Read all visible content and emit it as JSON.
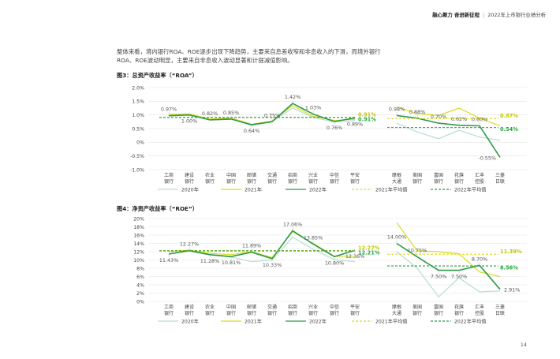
{
  "header": {
    "brand": "融心聚力 奋进新征程",
    "separator": "|",
    "report": "2022年上市银行业绩分析"
  },
  "intro": {
    "line1": "整体来看，境内银行ROA、ROE逐步出现下降趋势，主要来自息差收窄和非息收入的下滑，而境外银行",
    "line2": "ROA、ROE波动明显，主要来自非息收入波动显著和计提减值影响。"
  },
  "figures": [
    {
      "title": "图3：总资产收益率（“ROA”）"
    },
    {
      "title": "图4：净资产收益率（“ROE”）"
    }
  ],
  "page_number": "14",
  "colors": {
    "2020": "#b8dcd3",
    "2021": "#d7dc1e",
    "2022": "#2f9a4a",
    "avg2021": "#d7dc1e",
    "avg2022": "#2f9a4a",
    "grid": "#e3e3e3",
    "highlight": "#29a83d"
  },
  "chart_data": [
    {
      "type": "line",
      "title": "图3：总资产收益率（“ROA”）",
      "categories": [
        "工商银行",
        "建设银行",
        "农业银行",
        "中国银行",
        "邮储银行",
        "交通银行",
        "招商银行",
        "兴业银行",
        "中信银行",
        "平安银行",
        "摩根大通",
        "美国银行",
        "富国银行",
        "花旗银行",
        "汇丰银行",
        "三菱日联"
      ],
      "category_lines": [
        [
          "工商",
          "银行"
        ],
        [
          "建设",
          "银行"
        ],
        [
          "农业",
          "银行"
        ],
        [
          "中国",
          "银行"
        ],
        [
          "邮储",
          "银行"
        ],
        [
          "交通",
          "银行"
        ],
        [
          "招商",
          "银行"
        ],
        [
          "兴业",
          "银行"
        ],
        [
          "中信",
          "银行"
        ],
        [
          "平安",
          "银行"
        ],
        [
          "摩根",
          "大通"
        ],
        [
          "美国",
          "银行"
        ],
        [
          "富国",
          "银行"
        ],
        [
          "花旗",
          "银行"
        ],
        [
          "汇丰",
          "控股"
        ],
        [
          "三菱",
          "日联"
        ]
      ],
      "groups": [
        {
          "start": 0,
          "end": 9
        },
        {
          "start": 10,
          "end": 15
        }
      ],
      "yticks": [
        "2.0%",
        "1.5%",
        "1.0%",
        "0.5%",
        "0%",
        "-0.5%",
        "-1.0%"
      ],
      "ylim": [
        -1.0,
        2.0
      ],
      "series": [
        {
          "name": "2020年",
          "key": "2020",
          "values": [
            1.0,
            1.02,
            0.84,
            0.86,
            0.61,
            0.76,
            1.25,
            0.91,
            0.74,
            0.79,
            0.7,
            0.38,
            0.13,
            0.44,
            0.19,
            0.07
          ]
        },
        {
          "name": "2021年",
          "key": "2021",
          "values": [
            1.02,
            1.04,
            0.85,
            0.89,
            0.66,
            0.78,
            1.34,
            0.95,
            0.8,
            0.84,
            1.3,
            1.05,
            0.98,
            1.25,
            0.88,
            0.6
          ]
        },
        {
          "name": "2022年",
          "key": "2022",
          "values": [
            0.97,
            1.0,
            0.82,
            0.85,
            0.64,
            0.75,
            1.42,
            1.03,
            0.76,
            0.89,
            0.98,
            0.88,
            0.7,
            0.62,
            0.6,
            -0.55
          ]
        }
      ],
      "averages": [
        {
          "name": "2021年平均值",
          "key": "avg2021",
          "group": 0,
          "value": 0.91,
          "label": "0.91%"
        },
        {
          "name": "2022年平均值",
          "key": "avg2022",
          "group": 0,
          "value": 0.91,
          "label": "0.91%"
        },
        {
          "name": "2021年平均值",
          "key": "avg2021",
          "group": 1,
          "value": 0.87,
          "label": "0.87%"
        },
        {
          "name": "2022年平均值",
          "key": "avg2022",
          "group": 1,
          "value": 0.54,
          "label": "0.54%"
        }
      ],
      "data_labels": [
        {
          "i": 0,
          "v": 0.97,
          "text": "0.97%",
          "pos": "above"
        },
        {
          "i": 1,
          "v": 1.0,
          "text": "1.00%",
          "pos": "below"
        },
        {
          "i": 2,
          "v": 0.82,
          "text": "0.82%",
          "pos": "above"
        },
        {
          "i": 3,
          "v": 0.85,
          "text": "0.85%",
          "pos": "above"
        },
        {
          "i": 4,
          "v": 0.64,
          "text": "0.64%",
          "pos": "below"
        },
        {
          "i": 5,
          "v": 0.75,
          "text": "0.75%",
          "pos": "above"
        },
        {
          "i": 6,
          "v": 1.42,
          "text": "1.42%",
          "pos": "above"
        },
        {
          "i": 7,
          "v": 1.03,
          "text": "1.03%",
          "pos": "above"
        },
        {
          "i": 8,
          "v": 0.76,
          "text": "0.76%",
          "pos": "below"
        },
        {
          "i": 9,
          "v": 0.89,
          "text": "0.89%",
          "pos": "below"
        },
        {
          "i": 10,
          "v": 0.98,
          "text": "0.98%",
          "pos": "above"
        },
        {
          "i": 11,
          "v": 0.88,
          "text": "0.88%",
          "pos": "above"
        },
        {
          "i": 12,
          "v": 0.7,
          "text": "0.70%",
          "pos": "above"
        },
        {
          "i": 13,
          "v": 0.62,
          "text": "0.62%",
          "pos": "above"
        },
        {
          "i": 14,
          "v": 0.6,
          "text": "0.60%",
          "pos": "above"
        },
        {
          "i": 15,
          "v": -0.55,
          "text": "-0.55%",
          "pos": "left"
        }
      ],
      "legend": [
        {
          "label": "2020年",
          "key": "2020",
          "style": "solid"
        },
        {
          "label": "2021年",
          "key": "2021",
          "style": "solid"
        },
        {
          "label": "2022年",
          "key": "2022",
          "style": "solid"
        },
        {
          "label": "2021年平均值",
          "key": "avg2021",
          "style": "dashed"
        },
        {
          "label": "2022年平均值",
          "key": "avg2022",
          "style": "dashed"
        }
      ],
      "legend_position": "bottom",
      "grid": true
    },
    {
      "type": "line",
      "title": "图4：净资产收益率（“ROE”）",
      "categories": [
        "工商银行",
        "建设银行",
        "农业银行",
        "中国银行",
        "邮储银行",
        "交通银行",
        "招商银行",
        "兴业银行",
        "中信银行",
        "平安银行",
        "摩根大通",
        "美国银行",
        "富国银行",
        "花旗银行",
        "汇丰银行",
        "三菱日联"
      ],
      "category_lines": [
        [
          "工商",
          "银行"
        ],
        [
          "建设",
          "银行"
        ],
        [
          "农业",
          "银行"
        ],
        [
          "中国",
          "银行"
        ],
        [
          "邮储",
          "银行"
        ],
        [
          "交通",
          "银行"
        ],
        [
          "招商",
          "银行"
        ],
        [
          "兴业",
          "银行"
        ],
        [
          "中信",
          "银行"
        ],
        [
          "平安",
          "银行"
        ],
        [
          "摩根",
          "大通"
        ],
        [
          "美国",
          "银行"
        ],
        [
          "富国",
          "银行"
        ],
        [
          "花旗",
          "银行"
        ],
        [
          "汇丰",
          "控股"
        ],
        [
          "三菱",
          "日联"
        ]
      ],
      "groups": [
        {
          "start": 0,
          "end": 9
        },
        {
          "start": 10,
          "end": 15
        }
      ],
      "yticks": [
        "20%",
        "18%",
        "16%",
        "14%",
        "12%",
        "10%",
        "8%",
        "6%",
        "4%",
        "2%",
        "0%"
      ],
      "ylim": [
        0,
        20
      ],
      "series": [
        {
          "name": "2020年",
          "key": "2020",
          "values": [
            11.5,
            12.1,
            11.2,
            10.7,
            9.6,
            10.0,
            15.5,
            12.6,
            10.1,
            9.6,
            12.0,
            8.0,
            1.1,
            5.7,
            2.3,
            2.5
          ]
        },
        {
          "name": "2021年",
          "key": "2021",
          "values": [
            12.0,
            12.4,
            11.6,
            11.3,
            12.0,
            10.6,
            16.8,
            14.0,
            10.9,
            10.9,
            19.0,
            12.2,
            12.0,
            11.5,
            7.1,
            6.0
          ]
        },
        {
          "name": "2022年",
          "key": "2022",
          "values": [
            11.43,
            12.27,
            11.28,
            10.81,
            11.89,
            10.33,
            17.06,
            13.85,
            10.8,
            12.36,
            14.0,
            10.75,
            7.5,
            7.5,
            8.7,
            2.91
          ]
        }
      ],
      "averages": [
        {
          "name": "2021年平均值",
          "key": "avg2021",
          "group": 0,
          "value": 12.27,
          "label": "12.27%"
        },
        {
          "name": "2022年平均值",
          "key": "avg2022",
          "group": 0,
          "value": 12.21,
          "label": "12.21%"
        },
        {
          "name": "2021年平均值",
          "key": "avg2021",
          "group": 1,
          "value": 11.39,
          "label": "11.39%"
        },
        {
          "name": "2022年平均值",
          "key": "avg2022",
          "group": 1,
          "value": 8.56,
          "label": "8.56%"
        }
      ],
      "data_labels": [
        {
          "i": 0,
          "v": 11.43,
          "text": "11.43%",
          "pos": "below"
        },
        {
          "i": 1,
          "v": 12.27,
          "text": "12.27%",
          "pos": "above"
        },
        {
          "i": 2,
          "v": 11.28,
          "text": "11.28%",
          "pos": "below"
        },
        {
          "i": 3,
          "v": 10.81,
          "text": "10.81%",
          "pos": "below"
        },
        {
          "i": 4,
          "v": 11.89,
          "text": "11.89%",
          "pos": "above"
        },
        {
          "i": 5,
          "v": 10.33,
          "text": "10.33%",
          "pos": "below"
        },
        {
          "i": 6,
          "v": 17.06,
          "text": "17.06%",
          "pos": "above"
        },
        {
          "i": 7,
          "v": 13.85,
          "text": "13.85%",
          "pos": "above"
        },
        {
          "i": 8,
          "v": 10.8,
          "text": "10.80%",
          "pos": "below"
        },
        {
          "i": 9,
          "v": 12.36,
          "text": "12.36%",
          "pos": "below"
        },
        {
          "i": 10,
          "v": 14.0,
          "text": "14.00%",
          "pos": "above"
        },
        {
          "i": 11,
          "v": 10.75,
          "text": "10.75%",
          "pos": "above"
        },
        {
          "i": 12,
          "v": 7.5,
          "text": "7.50%",
          "pos": "below"
        },
        {
          "i": 13,
          "v": 7.5,
          "text": "7.50%",
          "pos": "below"
        },
        {
          "i": 14,
          "v": 8.7,
          "text": "8.70%",
          "pos": "above"
        },
        {
          "i": 15,
          "v": 2.91,
          "text": "2.91%",
          "pos": "right"
        }
      ],
      "legend": [
        {
          "label": "2020年",
          "key": "2020",
          "style": "solid"
        },
        {
          "label": "2021年",
          "key": "2021",
          "style": "solid"
        },
        {
          "label": "2022年",
          "key": "2022",
          "style": "solid"
        },
        {
          "label": "2021年平均值",
          "key": "avg2021",
          "style": "dashed"
        },
        {
          "label": "2022年平均值",
          "key": "avg2022",
          "style": "dashed"
        }
      ],
      "legend_position": "bottom",
      "grid": true
    }
  ]
}
